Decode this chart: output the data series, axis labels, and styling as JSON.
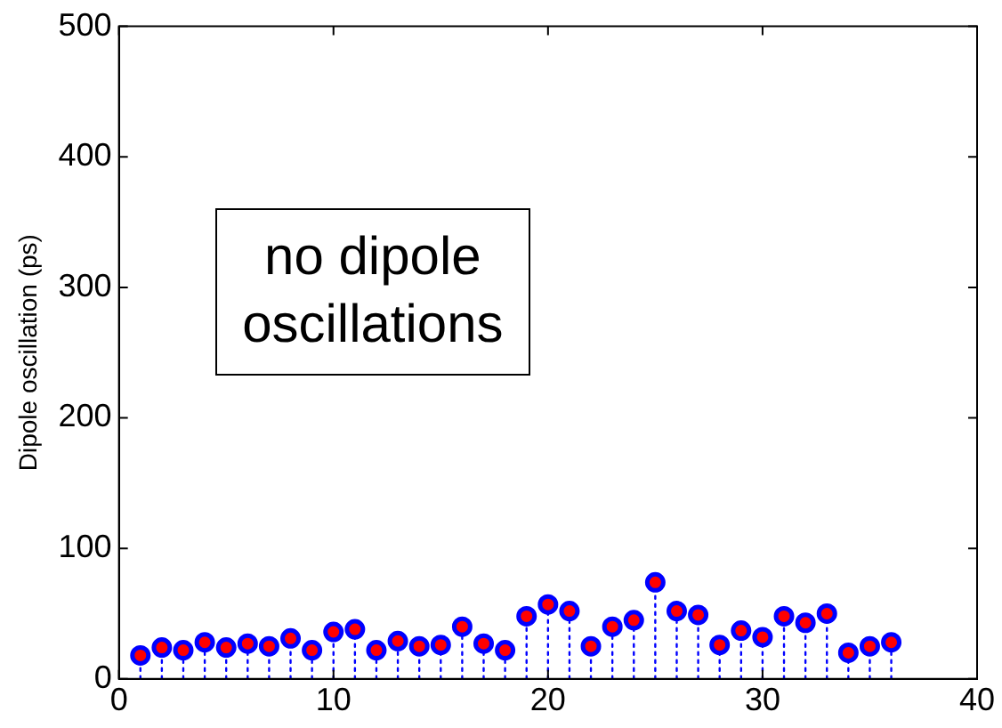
{
  "chart_data": {
    "type": "lollipop",
    "ylabel": "Dipole oscillation (ps)",
    "x": [
      1,
      2,
      3,
      4,
      5,
      6,
      7,
      8,
      9,
      10,
      11,
      12,
      13,
      14,
      15,
      16,
      17,
      18,
      19,
      20,
      21,
      22,
      23,
      24,
      25,
      26,
      27,
      28,
      29,
      30,
      31,
      32,
      33,
      34,
      35,
      36
    ],
    "series": [
      {
        "color": "#ff0000",
        "values": [
          18,
          24,
          22,
          28,
          24,
          27,
          25,
          31,
          22,
          36,
          38,
          22,
          29,
          25,
          26,
          40,
          27,
          22,
          48,
          57,
          52,
          25,
          40,
          45,
          74,
          52,
          49,
          26,
          37,
          32,
          48,
          43,
          50,
          20,
          25,
          28
        ]
      }
    ],
    "xlim": [
      0,
      40
    ],
    "xticks": [
      0,
      10,
      20,
      30,
      40
    ],
    "ylim": [
      0,
      500
    ],
    "yticks": [
      0,
      100,
      200,
      300,
      400,
      500
    ],
    "grid": false,
    "legend": false,
    "marker": "circle",
    "line_style": "dotted",
    "annotations": [
      "no dipole\noscillations"
    ]
  }
}
